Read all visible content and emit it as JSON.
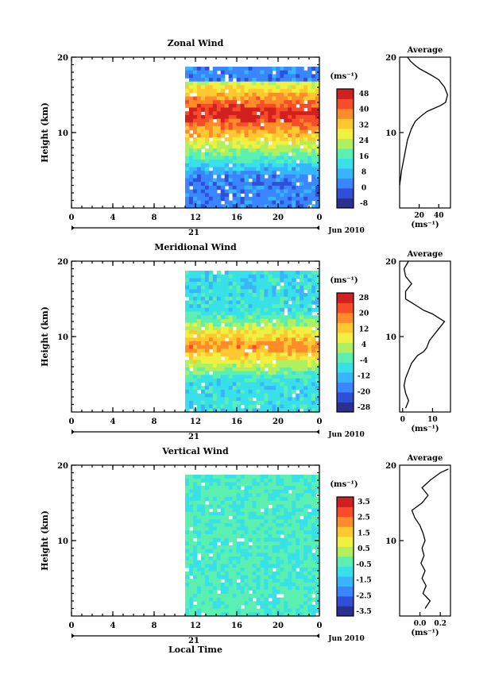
{
  "xaxis": {
    "ticks": [
      "0",
      "4",
      "8",
      "12",
      "16",
      "20",
      "0"
    ],
    "day_label": "21",
    "date_label": "Jun 2010",
    "title": "Local Time"
  },
  "ylabel": "Height (km)",
  "yticks": [
    "20",
    "10"
  ],
  "units": "(ms⁻¹)",
  "avg_title": "Average",
  "panels": [
    {
      "title": "Zonal Wind",
      "colorbar_ticks": [
        "48",
        "40",
        "32",
        "24",
        "16",
        "8",
        "0",
        "-8"
      ],
      "avg_xticks": [
        "20",
        "40"
      ],
      "avg_xlim": [
        0,
        52
      ],
      "avg_profile": [
        [
          0,
          3
        ],
        [
          2,
          5
        ],
        [
          5,
          7
        ],
        [
          8,
          9
        ],
        [
          12,
          10.5
        ],
        [
          16,
          11.5
        ],
        [
          22,
          12.2
        ],
        [
          28,
          12.8
        ],
        [
          35,
          13.2
        ],
        [
          42,
          13.6
        ],
        [
          47,
          14
        ],
        [
          49,
          15
        ],
        [
          46,
          16
        ],
        [
          40,
          17
        ],
        [
          34,
          17.5
        ],
        [
          27,
          18
        ],
        [
          20,
          18.5
        ],
        [
          15,
          19
        ],
        [
          11,
          19.5
        ],
        [
          8,
          20
        ]
      ]
    },
    {
      "title": "Meridional Wind",
      "colorbar_ticks": [
        "28",
        "20",
        "12",
        "4",
        "-4",
        "-12",
        "-20",
        "-28"
      ],
      "avg_xticks": [
        "0",
        "10"
      ],
      "avg_xlim": [
        -1,
        16
      ],
      "avg_profile": [
        [
          1,
          0.5
        ],
        [
          2,
          1.5
        ],
        [
          1,
          2.5
        ],
        [
          0.5,
          3.5
        ],
        [
          1,
          4.5
        ],
        [
          2,
          5.5
        ],
        [
          3,
          6.5
        ],
        [
          5,
          7.5
        ],
        [
          7,
          8
        ],
        [
          8,
          8.5
        ],
        [
          9,
          9.5
        ],
        [
          11,
          10.5
        ],
        [
          13,
          11.5
        ],
        [
          14,
          12
        ],
        [
          12,
          12.5
        ],
        [
          10,
          13
        ],
        [
          7,
          13.5
        ],
        [
          5,
          14
        ],
        [
          3,
          14.5
        ],
        [
          1,
          15
        ],
        [
          1,
          16
        ],
        [
          3,
          17
        ],
        [
          1,
          18
        ],
        [
          0.5,
          19
        ],
        [
          2,
          20
        ]
      ]
    },
    {
      "title": "Vertical Wind",
      "colorbar_ticks": [
        "3.5",
        "2.5",
        "1.5",
        "0.5",
        "-0.5",
        "-1.5",
        "-2.5",
        "-3.5"
      ],
      "avg_xticks": [
        "0.0",
        "0.2"
      ],
      "avg_xlim": [
        -0.2,
        0.3
      ],
      "avg_profile": [
        [
          0.05,
          1
        ],
        [
          0.1,
          2
        ],
        [
          0.03,
          3
        ],
        [
          0.06,
          4
        ],
        [
          0.02,
          5
        ],
        [
          0.05,
          6
        ],
        [
          0.01,
          7
        ],
        [
          0.04,
          8
        ],
        [
          0.02,
          9
        ],
        [
          0.05,
          10
        ],
        [
          0.03,
          11
        ],
        [
          0.0,
          12
        ],
        [
          -0.05,
          13
        ],
        [
          -0.08,
          14
        ],
        [
          0.02,
          15
        ],
        [
          0.08,
          16
        ],
        [
          0.02,
          17
        ],
        [
          0.1,
          18
        ],
        [
          0.2,
          19
        ],
        [
          0.28,
          19.5
        ]
      ]
    }
  ],
  "colorbar_colors": [
    "#2b2f8f",
    "#2f4fd6",
    "#3a86ff",
    "#37b6ff",
    "#38e0e8",
    "#5cf0b0",
    "#b0f060",
    "#f0f040",
    "#ffc830",
    "#ff8c28",
    "#f84c28",
    "#d02020"
  ]
}
